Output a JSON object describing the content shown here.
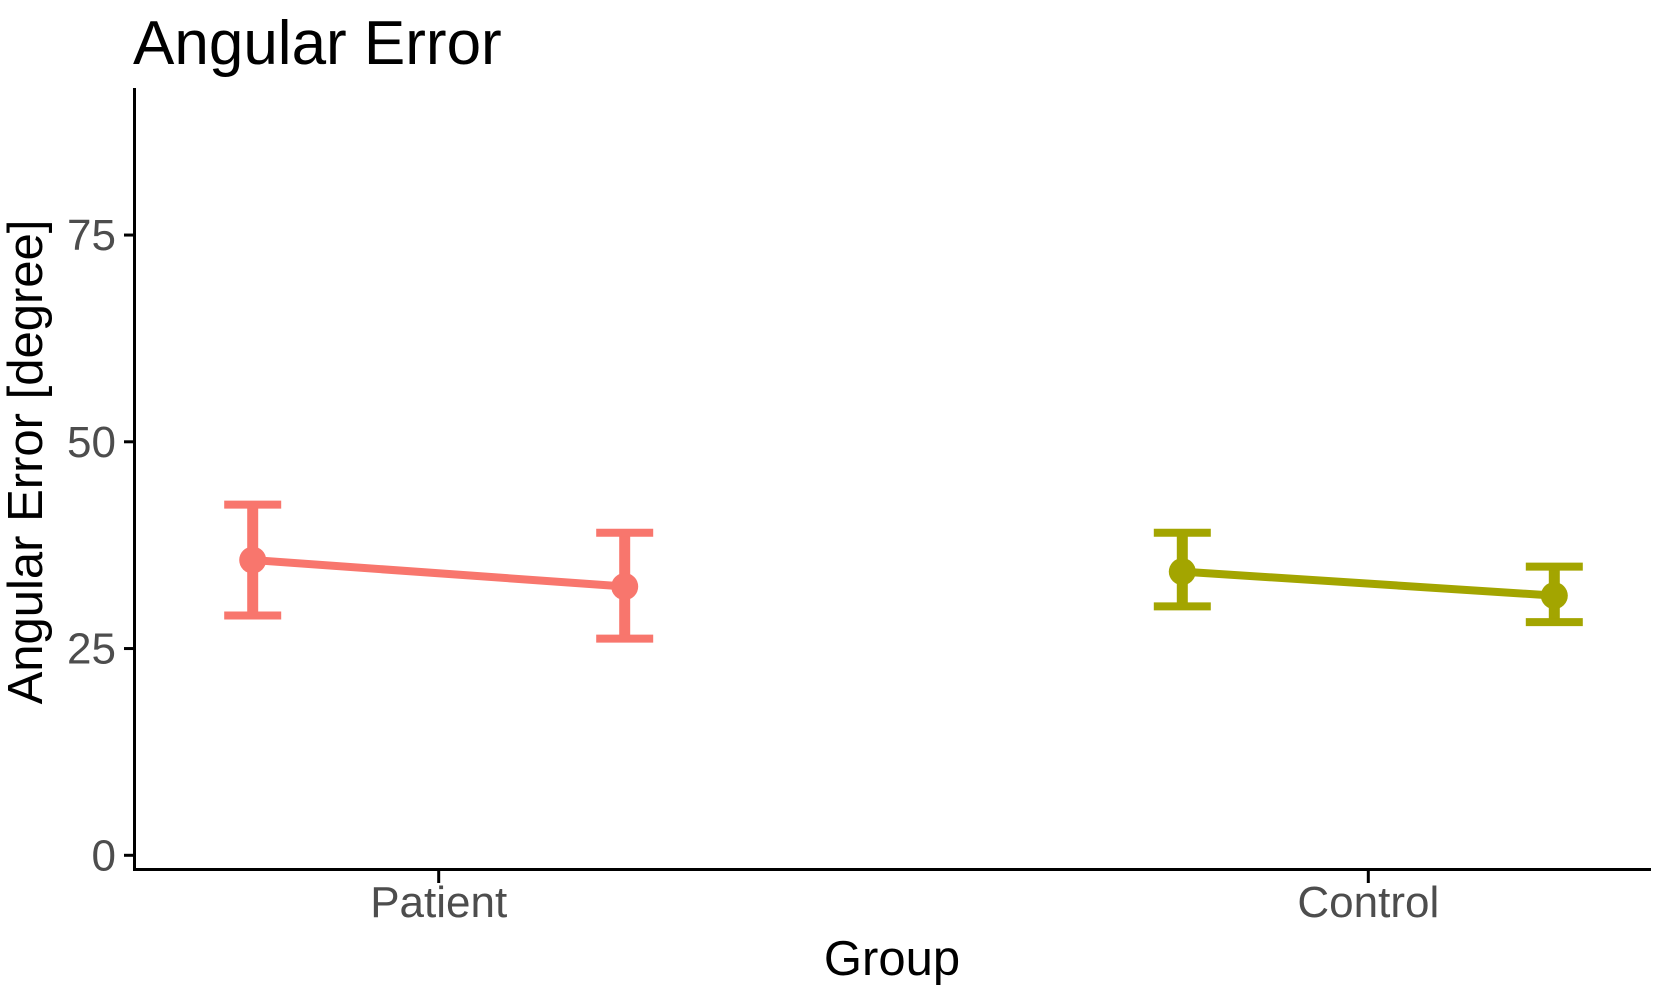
{
  "chart_data": {
    "type": "line",
    "subtype": "point-range-with-error-bars",
    "title": "Angular Error",
    "xlabel": "Group",
    "ylabel": "Angular Error [degree]",
    "ylim": [
      0,
      93
    ],
    "yticks": [
      0,
      25,
      50,
      75
    ],
    "categories": [
      "Patient",
      "Control"
    ],
    "grid": false,
    "legend": "none",
    "accent_colors": {
      "patient": "#F8766D",
      "control": "#A3A500"
    },
    "axis_text_color": "#4D4D4D",
    "axis_line_color": "#000000",
    "series": [
      {
        "name": "Patient",
        "category": "Patient",
        "color": "#F8766D",
        "points": [
          {
            "mean": 35.7,
            "ci_low": 29.0,
            "ci_high": 42.4
          },
          {
            "mean": 32.5,
            "ci_low": 26.2,
            "ci_high": 39.0
          }
        ]
      },
      {
        "name": "Control",
        "category": "Control",
        "color": "#A3A500",
        "points": [
          {
            "mean": 34.3,
            "ci_low": 30.1,
            "ci_high": 39.0
          },
          {
            "mean": 31.4,
            "ci_low": 28.2,
            "ci_high": 34.9
          }
        ]
      }
    ]
  }
}
